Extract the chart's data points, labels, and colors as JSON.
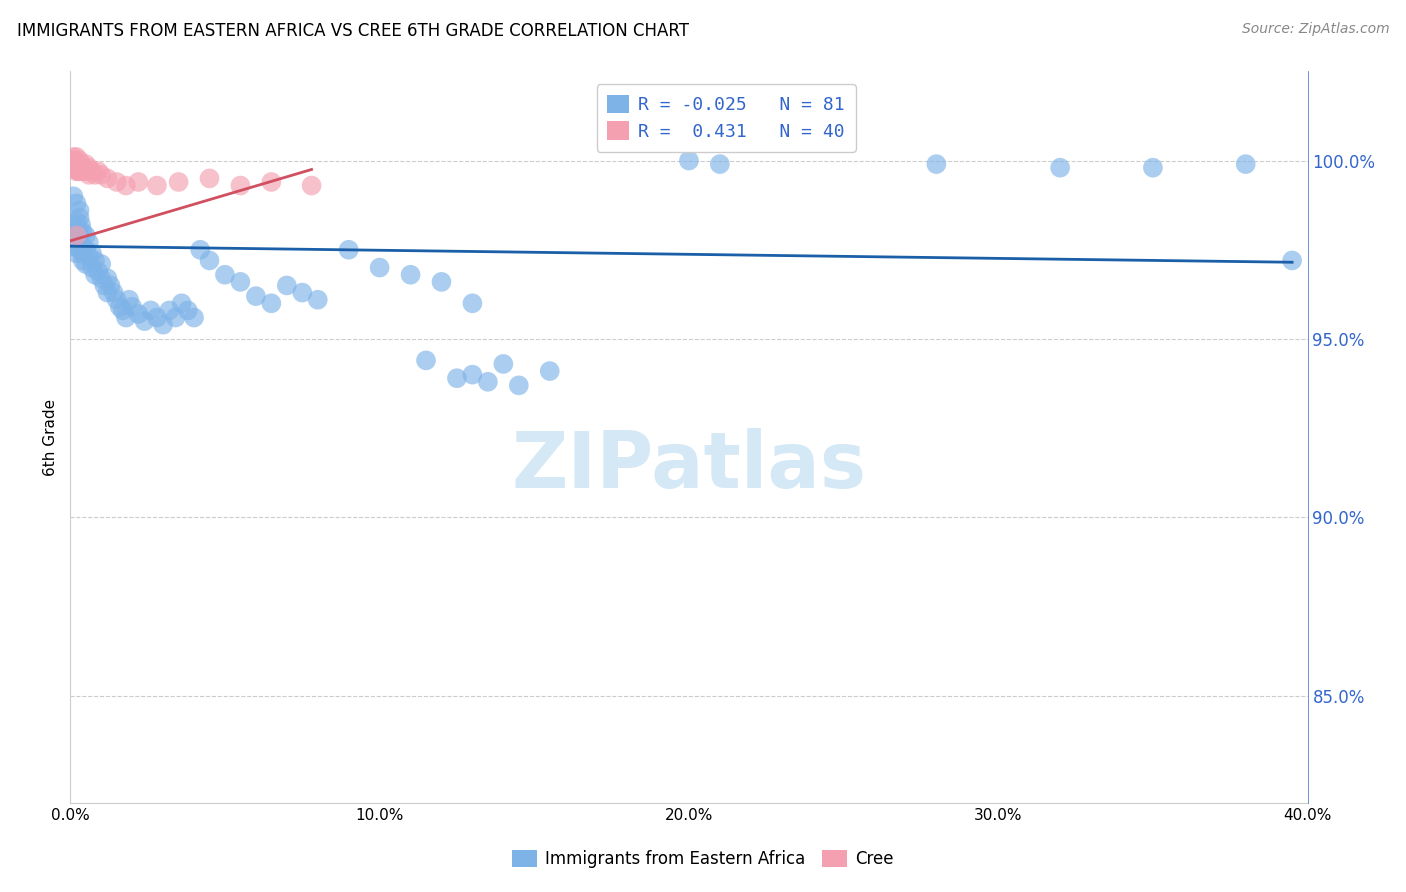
{
  "title": "IMMIGRANTS FROM EASTERN AFRICA VS CREE 6TH GRADE CORRELATION CHART",
  "source": "Source: ZipAtlas.com",
  "ylabel": "6th Grade",
  "xlim": [
    0.0,
    0.4
  ],
  "ylim": [
    0.82,
    1.025
  ],
  "blue_R": -0.025,
  "blue_N": 81,
  "pink_R": 0.431,
  "pink_N": 40,
  "blue_color": "#7EB3E8",
  "pink_color": "#F4A0B0",
  "blue_line_color": "#1A5FA8",
  "pink_line_color": "#D05060",
  "legend_text_color": "#3366CC",
  "right_axis_color": "#3366CC",
  "grid_color": "#CCCCCC",
  "watermark_color": "#D5E8F5",
  "blue_scatter_x": [
    0.0005,
    0.001,
    0.001,
    0.0015,
    0.002,
    0.002,
    0.002,
    0.0025,
    0.003,
    0.003,
    0.003,
    0.003,
    0.0035,
    0.004,
    0.004,
    0.004,
    0.004,
    0.005,
    0.005,
    0.005,
    0.006,
    0.006,
    0.007,
    0.007,
    0.008,
    0.008,
    0.009,
    0.01,
    0.01,
    0.011,
    0.012,
    0.012,
    0.013,
    0.014,
    0.015,
    0.016,
    0.017,
    0.018,
    0.019,
    0.02,
    0.022,
    0.024,
    0.026,
    0.028,
    0.03,
    0.032,
    0.034,
    0.036,
    0.038,
    0.04,
    0.042,
    0.045,
    0.05,
    0.055,
    0.06,
    0.065,
    0.07,
    0.075,
    0.08,
    0.09,
    0.1,
    0.11,
    0.12,
    0.13,
    0.2,
    0.21,
    0.28,
    0.32,
    0.35,
    0.38,
    0.395,
    0.001,
    0.002,
    0.003,
    0.13,
    0.135,
    0.14,
    0.155,
    0.115,
    0.125,
    0.145
  ],
  "blue_scatter_y": [
    0.98,
    0.976,
    0.982,
    0.979,
    0.974,
    0.978,
    0.983,
    0.981,
    0.975,
    0.98,
    0.984,
    0.977,
    0.982,
    0.972,
    0.976,
    0.98,
    0.974,
    0.971,
    0.975,
    0.979,
    0.973,
    0.977,
    0.97,
    0.974,
    0.968,
    0.972,
    0.969,
    0.967,
    0.971,
    0.965,
    0.963,
    0.967,
    0.965,
    0.963,
    0.961,
    0.959,
    0.958,
    0.956,
    0.961,
    0.959,
    0.957,
    0.955,
    0.958,
    0.956,
    0.954,
    0.958,
    0.956,
    0.96,
    0.958,
    0.956,
    0.975,
    0.972,
    0.968,
    0.966,
    0.962,
    0.96,
    0.965,
    0.963,
    0.961,
    0.975,
    0.97,
    0.968,
    0.966,
    0.96,
    1.0,
    0.999,
    0.999,
    0.998,
    0.998,
    0.999,
    0.972,
    0.99,
    0.988,
    0.986,
    0.94,
    0.938,
    0.943,
    0.941,
    0.944,
    0.939,
    0.937
  ],
  "pink_scatter_x": [
    0.0003,
    0.0005,
    0.0007,
    0.001,
    0.001,
    0.001,
    0.001,
    0.0013,
    0.0015,
    0.0017,
    0.002,
    0.002,
    0.002,
    0.002,
    0.0025,
    0.003,
    0.003,
    0.003,
    0.003,
    0.004,
    0.004,
    0.005,
    0.005,
    0.006,
    0.006,
    0.007,
    0.008,
    0.009,
    0.01,
    0.012,
    0.015,
    0.018,
    0.022,
    0.028,
    0.035,
    0.045,
    0.055,
    0.065,
    0.078,
    0.002
  ],
  "pink_scatter_y": [
    0.999,
    1.0,
    0.999,
    0.998,
    1.0,
    1.001,
    0.999,
    0.998,
    1.0,
    0.999,
    0.997,
    0.999,
    1.001,
    0.998,
    0.997,
    0.998,
    1.0,
    0.999,
    0.997,
    0.998,
    0.997,
    0.999,
    0.997,
    0.998,
    0.996,
    0.997,
    0.996,
    0.997,
    0.996,
    0.995,
    0.994,
    0.993,
    0.994,
    0.993,
    0.994,
    0.995,
    0.993,
    0.994,
    0.993,
    0.979
  ],
  "blue_line_x": [
    0.0,
    0.395
  ],
  "blue_line_y": [
    0.976,
    0.9715
  ],
  "pink_line_x": [
    0.0,
    0.078
  ],
  "pink_line_y": [
    0.9775,
    0.9975
  ],
  "x_ticks": [
    0.0,
    0.1,
    0.2,
    0.3,
    0.4
  ],
  "x_tick_labels": [
    "0.0%",
    "10.0%",
    "20.0%",
    "30.0%",
    "40.0%"
  ],
  "y_ticks": [
    0.85,
    0.9,
    0.95,
    1.0
  ],
  "y_tick_labels": [
    "85.0%",
    "90.0%",
    "95.0%",
    "100.0%"
  ]
}
